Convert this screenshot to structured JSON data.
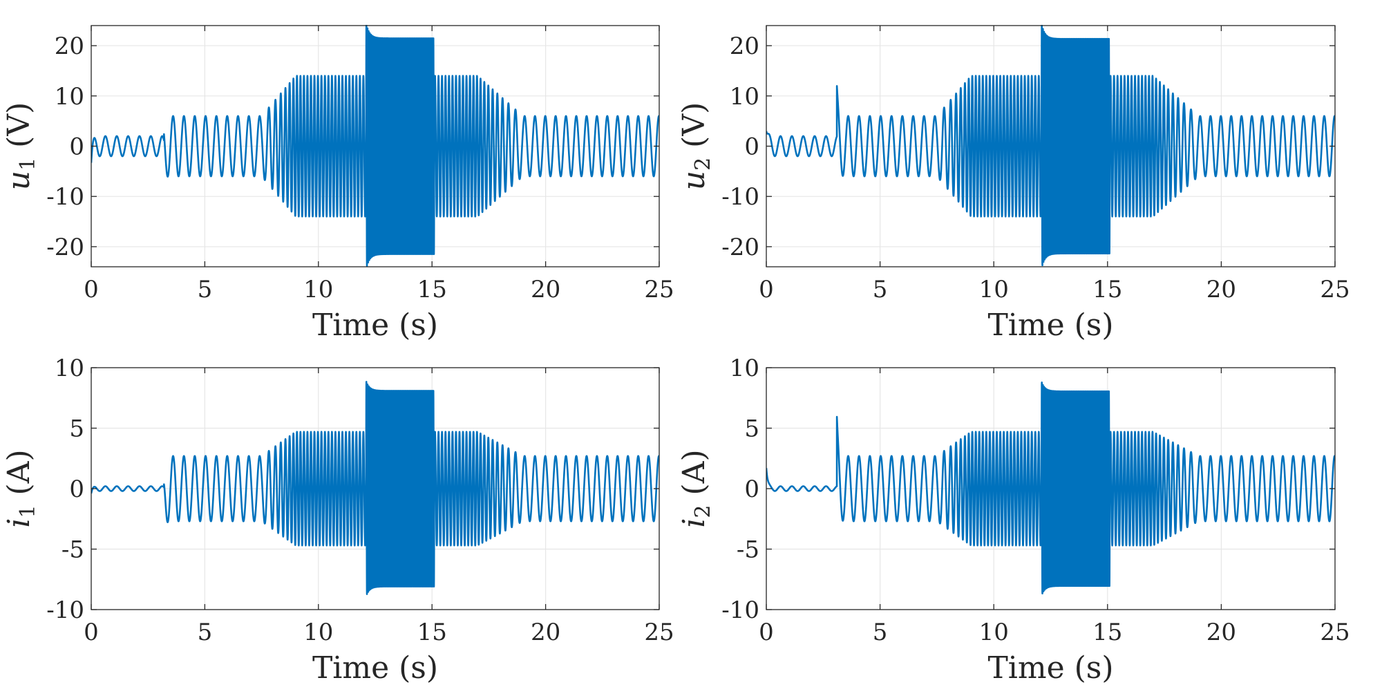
{
  "chart_data": [
    {
      "id": "u1",
      "type": "line",
      "xlabel": "Time (s)",
      "ylabel": {
        "symbol": "u",
        "subscript": "1",
        "unit": "(V)"
      },
      "xlim": [
        0,
        25
      ],
      "ylim": [
        -24,
        24
      ],
      "xticks": [
        0,
        5,
        10,
        15,
        20,
        25
      ],
      "yticks": [
        -20,
        -10,
        0,
        10,
        20
      ],
      "grid": true,
      "color": "#0072BD",
      "segments": [
        {
          "t0": 0.0,
          "t1": 3.2,
          "amplitude": 2.0,
          "frequency": 2.0,
          "transient": -3.3
        },
        {
          "t0": 3.2,
          "t1": 7.5,
          "amplitude": 6.0,
          "frequency": 2.1,
          "transient": -1.0
        },
        {
          "t0": 7.5,
          "t1": 9.0,
          "amplitude_start": 6.0,
          "amplitude_end": 14.0,
          "frequency_start": 2.1,
          "frequency_end": 6.5
        },
        {
          "t0": 9.0,
          "t1": 12.1,
          "amplitude": 14.0,
          "frequency": 6.5
        },
        {
          "t0": 12.1,
          "t1": 15.1,
          "amplitude": 21.5,
          "frequency": 20.0,
          "overshoot": 24.5
        },
        {
          "t0": 15.1,
          "t1": 17.0,
          "amplitude": 14.0,
          "frequency": 6.5
        },
        {
          "t0": 17.0,
          "t1": 19.0,
          "amplitude_start": 14.0,
          "amplitude_end": 6.0,
          "frequency_start": 6.5,
          "frequency_end": 2.2
        },
        {
          "t0": 19.0,
          "t1": 25.0,
          "amplitude": 6.0,
          "frequency": 2.2
        }
      ]
    },
    {
      "id": "u2",
      "type": "line",
      "xlabel": "Time (s)",
      "ylabel": {
        "symbol": "u",
        "subscript": "2",
        "unit": "(V)"
      },
      "xlim": [
        0,
        25
      ],
      "ylim": [
        -24,
        24
      ],
      "xticks": [
        0,
        5,
        10,
        15,
        20,
        25
      ],
      "yticks": [
        -20,
        -10,
        0,
        10,
        20
      ],
      "grid": true,
      "color": "#0072BD",
      "segments": [
        {
          "t0": 0.0,
          "t1": 3.1,
          "amplitude": 2.0,
          "frequency": 2.0,
          "transient": 3.0
        },
        {
          "t0": 3.1,
          "t1": 7.5,
          "amplitude": 6.0,
          "frequency": 2.1,
          "transient": 6.5
        },
        {
          "t0": 7.5,
          "t1": 9.0,
          "amplitude_start": 6.0,
          "amplitude_end": 14.0,
          "frequency_start": 2.1,
          "frequency_end": 6.5
        },
        {
          "t0": 9.0,
          "t1": 12.1,
          "amplitude": 14.0,
          "frequency": 6.5
        },
        {
          "t0": 12.1,
          "t1": 15.1,
          "amplitude": 21.5,
          "frequency": 20.0,
          "overshoot": 24.5
        },
        {
          "t0": 15.1,
          "t1": 17.0,
          "amplitude": 14.0,
          "frequency": 6.5
        },
        {
          "t0": 17.0,
          "t1": 19.0,
          "amplitude_start": 14.0,
          "amplitude_end": 6.0,
          "frequency_start": 6.5,
          "frequency_end": 2.2
        },
        {
          "t0": 19.0,
          "t1": 25.0,
          "amplitude": 6.0,
          "frequency": 2.2
        }
      ]
    },
    {
      "id": "i1",
      "type": "line",
      "xlabel": "Time (s)",
      "ylabel": {
        "symbol": "i",
        "subscript": "1",
        "unit": "(A)"
      },
      "xlim": [
        0,
        25
      ],
      "ylim": [
        -10,
        10
      ],
      "xticks": [
        0,
        5,
        10,
        15,
        20,
        25
      ],
      "yticks": [
        -10,
        -5,
        0,
        5,
        10
      ],
      "grid": true,
      "color": "#0072BD",
      "segments": [
        {
          "t0": 0.0,
          "t1": 3.2,
          "amplitude": 0.2,
          "frequency": 2.0,
          "transient": -0.4
        },
        {
          "t0": 3.2,
          "t1": 7.5,
          "amplitude": 2.7,
          "frequency": 2.1,
          "transient": -1.2
        },
        {
          "t0": 7.5,
          "t1": 9.0,
          "amplitude_start": 2.7,
          "amplitude_end": 4.7,
          "frequency_start": 2.1,
          "frequency_end": 6.5
        },
        {
          "t0": 9.0,
          "t1": 12.1,
          "amplitude": 4.7,
          "frequency": 6.5
        },
        {
          "t0": 12.1,
          "t1": 15.1,
          "amplitude": 8.1,
          "frequency": 20.0,
          "overshoot": 8.9
        },
        {
          "t0": 15.1,
          "t1": 17.0,
          "amplitude": 4.7,
          "frequency": 6.5
        },
        {
          "t0": 17.0,
          "t1": 19.0,
          "amplitude_start": 4.7,
          "amplitude_end": 2.7,
          "frequency_start": 6.5,
          "frequency_end": 2.2
        },
        {
          "t0": 19.0,
          "t1": 25.0,
          "amplitude": 2.7,
          "frequency": 2.2
        }
      ]
    },
    {
      "id": "i2",
      "type": "line",
      "xlabel": "Time (s)",
      "ylabel": {
        "symbol": "i",
        "subscript": "2",
        "unit": "(A)"
      },
      "xlim": [
        0,
        25
      ],
      "ylim": [
        -10,
        10
      ],
      "xticks": [
        0,
        5,
        10,
        15,
        20,
        25
      ],
      "yticks": [
        -10,
        -5,
        0,
        5,
        10
      ],
      "grid": true,
      "color": "#0072BD",
      "segments": [
        {
          "t0": 0.0,
          "t1": 3.1,
          "amplitude": 0.2,
          "frequency": 2.0,
          "transient": 1.7
        },
        {
          "t0": 3.1,
          "t1": 7.5,
          "amplitude": 2.7,
          "frequency": 2.1,
          "transient": 3.5
        },
        {
          "t0": 7.5,
          "t1": 9.0,
          "amplitude_start": 2.7,
          "amplitude_end": 4.7,
          "frequency_start": 2.1,
          "frequency_end": 6.5
        },
        {
          "t0": 9.0,
          "t1": 12.1,
          "amplitude": 4.7,
          "frequency": 6.5
        },
        {
          "t0": 12.1,
          "t1": 15.1,
          "amplitude": 8.1,
          "frequency": 20.0,
          "overshoot": 8.9
        },
        {
          "t0": 15.1,
          "t1": 17.0,
          "amplitude": 4.7,
          "frequency": 6.5
        },
        {
          "t0": 17.0,
          "t1": 19.0,
          "amplitude_start": 4.7,
          "amplitude_end": 2.7,
          "frequency_start": 6.5,
          "frequency_end": 2.2
        },
        {
          "t0": 19.0,
          "t1": 25.0,
          "amplitude": 2.7,
          "frequency": 2.2
        }
      ]
    }
  ]
}
